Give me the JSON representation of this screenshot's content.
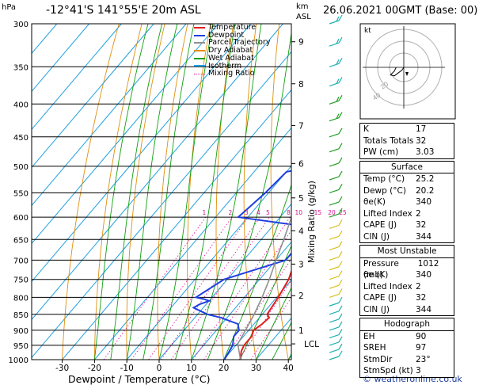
{
  "header": {
    "hpa_label": "hPa",
    "location": "-12°41'S  141°55'E  20m  ASL",
    "km_label": "km",
    "asl_label": "ASL",
    "datetime": "26.06.2021  00GMT  (Base: 00)",
    "credit": "© weatheronline.co.uk"
  },
  "chart_data": {
    "type": "line",
    "title": "-12°41'S  141°55'E  20m  ASL",
    "xlabel": "Dewpoint / Temperature (°C)",
    "ylabel": "hPa",
    "right_axis_label": "Mixing Ratio (g/kg)",
    "x_ticks": [
      -30,
      -20,
      -10,
      0,
      10,
      20,
      30,
      40
    ],
    "pressure_levels": [
      300,
      350,
      400,
      450,
      500,
      550,
      600,
      650,
      700,
      750,
      800,
      850,
      900,
      950,
      1000
    ],
    "km_ticks": [
      {
        "km": "1",
        "p": 900
      },
      {
        "km": "2",
        "p": 795
      },
      {
        "km": "3",
        "p": 710
      },
      {
        "km": "4",
        "p": 630
      },
      {
        "km": "5",
        "p": 560
      },
      {
        "km": "6",
        "p": 495
      },
      {
        "km": "7",
        "p": 432
      },
      {
        "km": "8",
        "p": 372
      },
      {
        "km": "9",
        "p": 320
      }
    ],
    "lcl_label": "LCL",
    "lcl_p": 945,
    "mixing_ratio_labels": [
      "1",
      "2",
      "3",
      "4",
      "5",
      "8",
      "10",
      "15",
      "20",
      "25"
    ],
    "mixing_ratio_values": [
      1,
      2,
      3,
      4,
      5,
      8,
      10,
      15,
      20,
      25
    ],
    "legend": [
      {
        "name": "Temperature",
        "color": "#e02020"
      },
      {
        "name": "Dewpoint",
        "color": "#1f3fe0"
      },
      {
        "name": "Parcel Trajectory",
        "color": "#909090"
      },
      {
        "name": "Dry Adiabat",
        "color": "#e09010"
      },
      {
        "name": "Wet Adiabat",
        "color": "#10a010"
      },
      {
        "name": "Isotherm",
        "color": "#20a0e0"
      },
      {
        "name": "Mixing Ratio",
        "color": "#e020a0"
      }
    ],
    "series": [
      {
        "name": "Temperature",
        "points": [
          [
            1000,
            25.2
          ],
          [
            970,
            23.2
          ],
          [
            950,
            22.5
          ],
          [
            920,
            22.5
          ],
          [
            900,
            21.5
          ],
          [
            880,
            22.5
          ],
          [
            860,
            23
          ],
          [
            850,
            21.5
          ],
          [
            800,
            20.5
          ],
          [
            750,
            19
          ],
          [
            700,
            16
          ],
          [
            650,
            12
          ],
          [
            600,
            8
          ],
          [
            550,
            4
          ],
          [
            500,
            -1
          ],
          [
            470,
            -5
          ],
          [
            450,
            -7
          ],
          [
            430,
            -11
          ],
          [
            415,
            -13
          ],
          [
            405,
            -13
          ],
          [
            395,
            -13.5
          ],
          [
            380,
            -15
          ],
          [
            360,
            -18
          ],
          [
            330,
            -23
          ],
          [
            310,
            -27
          ],
          [
            300,
            -29
          ]
        ]
      },
      {
        "name": "Dewpoint",
        "points": [
          [
            1000,
            20.2
          ],
          [
            950,
            19
          ],
          [
            920,
            17
          ],
          [
            900,
            17
          ],
          [
            880,
            15
          ],
          [
            860,
            8
          ],
          [
            850,
            3
          ],
          [
            830,
            -3
          ],
          [
            820,
            -2
          ],
          [
            810,
            0
          ],
          [
            805,
            -2
          ],
          [
            800,
            -5
          ],
          [
            750,
            -1
          ],
          [
            700,
            13
          ],
          [
            650,
            13
          ],
          [
            620,
            10
          ],
          [
            600,
            -13
          ],
          [
            550,
            -11
          ],
          [
            510,
            -10
          ],
          [
            500,
            -2
          ],
          [
            470,
            4
          ],
          [
            450,
            8
          ],
          [
            430,
            9
          ],
          [
            420,
            9
          ],
          [
            415,
            5
          ],
          [
            410,
            5
          ],
          [
            400,
            0
          ],
          [
            395,
            -8
          ],
          [
            390,
            -1
          ],
          [
            385,
            -10
          ],
          [
            380,
            -5
          ],
          [
            370,
            -20
          ],
          [
            350,
            -15
          ],
          [
            330,
            -17
          ],
          [
            300,
            -16
          ]
        ]
      },
      {
        "name": "Parcel Trajectory",
        "points": [
          [
            1000,
            25.2
          ],
          [
            945,
            20.2
          ],
          [
            900,
            19
          ],
          [
            850,
            17.5
          ],
          [
            800,
            15.5
          ],
          [
            750,
            13
          ],
          [
            700,
            10
          ],
          [
            650,
            7
          ],
          [
            600,
            3.5
          ],
          [
            550,
            -0.5
          ],
          [
            500,
            -5
          ],
          [
            450,
            -10.5
          ],
          [
            400,
            -17
          ],
          [
            350,
            -25
          ],
          [
            300,
            -35
          ]
        ]
      }
    ]
  },
  "stats": {
    "top": [
      {
        "label": "K",
        "value": "17"
      },
      {
        "label": "Totals Totals",
        "value": "32"
      },
      {
        "label": "PW (cm)",
        "value": "3.03"
      }
    ],
    "surface": {
      "title": "Surface",
      "rows": [
        {
          "label": "Temp (°C)",
          "value": "25.2"
        },
        {
          "label": "Dewp (°C)",
          "value": "20.2"
        },
        {
          "label": "θe(K)",
          "value": "340"
        },
        {
          "label": "Lifted Index",
          "value": "2"
        },
        {
          "label": "CAPE (J)",
          "value": "32"
        },
        {
          "label": "CIN (J)",
          "value": "344"
        }
      ]
    },
    "most_unstable": {
      "title": "Most Unstable",
      "rows": [
        {
          "label": "Pressure (mb)",
          "value": "1012"
        },
        {
          "label": "θe (K)",
          "value": "340"
        },
        {
          "label": "Lifted Index",
          "value": "2"
        },
        {
          "label": "CAPE (J)",
          "value": "32"
        },
        {
          "label": "CIN (J)",
          "value": "344"
        }
      ]
    },
    "hodograph": {
      "title": "Hodograph",
      "rows": [
        {
          "label": "EH",
          "value": "90"
        },
        {
          "label": "SREH",
          "value": "97"
        },
        {
          "label": "StmDir",
          "value": "23°"
        },
        {
          "label": "StmSpd (kt)",
          "value": "3"
        }
      ]
    }
  },
  "hodo": {
    "unit": "kt",
    "ring_labels": [
      "20",
      "40"
    ],
    "trace_kt": [
      [
        0,
        0
      ],
      [
        -2,
        -3
      ],
      [
        -6,
        -6
      ],
      [
        -10,
        -9
      ],
      [
        -14,
        -8
      ],
      [
        -10,
        -4
      ],
      [
        -8,
        0
      ]
    ]
  }
}
